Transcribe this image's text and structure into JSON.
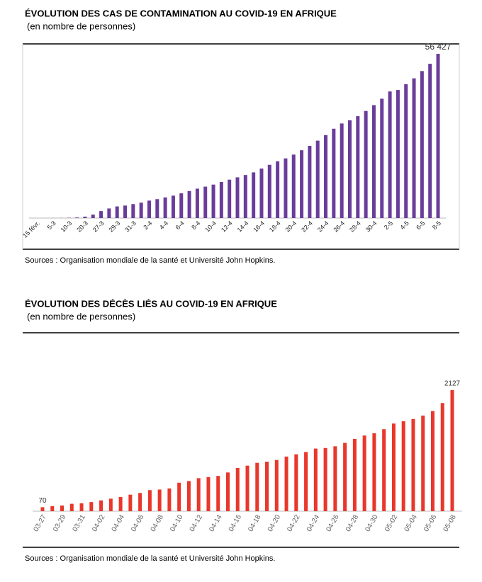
{
  "chart_data": [
    {
      "type": "bar",
      "title": "ÉVOLUTION DES CAS DE CONTAMINATION AU COVID-19 EN AFRIQUE",
      "subtitle": "(en nombre de personnes)",
      "note": "Sources : Organisation mondiale de la santé et Université John Hopkins.",
      "color": "#6a3d9a",
      "categories": [
        "15 févr.",
        null,
        "5-3",
        null,
        "10-3",
        null,
        "20-3",
        null,
        "27-3",
        null,
        "29-3",
        null,
        "31-3",
        null,
        "2-4",
        null,
        "4-4",
        null,
        "6-4",
        null,
        "8-4",
        null,
        "10-4",
        null,
        "12-4",
        null,
        "14-4",
        null,
        "16-4",
        null,
        "18-4",
        null,
        "20-4",
        null,
        "22-4",
        null,
        "24-4",
        null,
        "26-4",
        null,
        "28-4",
        null,
        "30-4",
        null,
        "2-5",
        null,
        "4-5",
        null,
        "6-5",
        null,
        "8-5"
      ],
      "values": [
        1,
        2,
        30,
        45,
        100,
        200,
        500,
        1200,
        2400,
        3300,
        4000,
        4300,
        4800,
        5300,
        6000,
        6500,
        7100,
        7700,
        8500,
        9300,
        10100,
        10800,
        11500,
        12400,
        13200,
        14000,
        14800,
        15700,
        17000,
        18300,
        19500,
        20500,
        21800,
        23300,
        24800,
        26600,
        28500,
        30700,
        32500,
        33600,
        35000,
        36800,
        38800,
        41000,
        43500,
        44000,
        46000,
        48000,
        50500,
        53000,
        56427
      ],
      "value_labels": [
        null,
        null,
        null,
        null,
        null,
        null,
        null,
        null,
        null,
        null,
        null,
        null,
        null,
        null,
        null,
        null,
        null,
        null,
        null,
        null,
        null,
        null,
        null,
        null,
        null,
        null,
        null,
        null,
        null,
        null,
        null,
        null,
        null,
        null,
        null,
        null,
        null,
        null,
        null,
        null,
        null,
        null,
        null,
        null,
        null,
        null,
        null,
        null,
        null,
        null,
        "56 427"
      ]
    },
    {
      "type": "bar",
      "title": "ÉVOLUTION DES DÉCÈS LIÉS AU COVID-19 EN AFRIQUE",
      "subtitle": "(en nombre de personnes)",
      "note": "Sources : Organisation mondiale de la santé et Université John Hopkins.",
      "color": "#e8372b",
      "categories": [
        "03-27",
        null,
        "03-29",
        null,
        "03-31",
        null,
        "04-02",
        null,
        "04-04",
        null,
        "04-06",
        null,
        "04-08",
        null,
        "04-10",
        null,
        "04-12",
        null,
        "04-14",
        null,
        "04-16",
        null,
        "04-18",
        null,
        "04-20",
        null,
        "04-22",
        null,
        "04-24",
        null,
        "04-26",
        null,
        "04-28",
        null,
        "04-30",
        null,
        "05-02",
        null,
        "05-04",
        null,
        "05-06",
        null,
        "05-08"
      ],
      "values": [
        70,
        90,
        100,
        130,
        140,
        160,
        190,
        220,
        250,
        290,
        320,
        370,
        380,
        400,
        500,
        530,
        580,
        600,
        620,
        680,
        760,
        800,
        850,
        870,
        900,
        960,
        1000,
        1040,
        1100,
        1110,
        1140,
        1200,
        1270,
        1330,
        1370,
        1440,
        1540,
        1580,
        1620,
        1680,
        1760,
        1900,
        2127
      ],
      "value_labels": [
        "70",
        null,
        null,
        null,
        null,
        null,
        null,
        null,
        null,
        null,
        null,
        null,
        null,
        null,
        null,
        null,
        null,
        null,
        null,
        null,
        null,
        null,
        null,
        null,
        null,
        null,
        null,
        null,
        null,
        null,
        null,
        null,
        null,
        null,
        null,
        null,
        null,
        null,
        null,
        null,
        null,
        null,
        "2127"
      ]
    }
  ]
}
